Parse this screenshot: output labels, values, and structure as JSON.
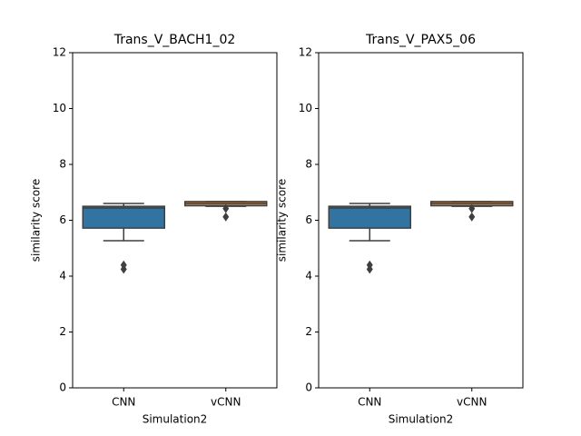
{
  "chart_data": [
    {
      "type": "box",
      "title": "Trans_V_BACH1_02",
      "xlabel": "Simulation2",
      "ylabel": "similarity score",
      "categories": [
        "CNN",
        "vCNN"
      ],
      "colors": [
        "#3274a1",
        "#e1812c"
      ],
      "boxes": [
        {
          "whislo": 5.27,
          "q1": 5.72,
          "med": 6.44,
          "q3": 6.5,
          "whishi": 6.6,
          "fliers": [
            4.25,
            4.4
          ]
        },
        {
          "whislo": 6.5,
          "q1": 6.52,
          "med": 6.6,
          "q3": 6.67,
          "whishi": 6.67,
          "fliers": [
            6.12,
            6.42
          ]
        }
      ],
      "ylim": [
        0,
        12
      ],
      "yticks": [
        0,
        2,
        4,
        6,
        8,
        10,
        12
      ]
    },
    {
      "type": "box",
      "title": "Trans_V_PAX5_06",
      "xlabel": "Simulation2",
      "ylabel": "similarity score",
      "categories": [
        "CNN",
        "vCNN"
      ],
      "colors": [
        "#3274a1",
        "#e1812c"
      ],
      "boxes": [
        {
          "whislo": 5.27,
          "q1": 5.72,
          "med": 6.44,
          "q3": 6.5,
          "whishi": 6.6,
          "fliers": [
            4.25,
            4.4
          ]
        },
        {
          "whislo": 6.5,
          "q1": 6.52,
          "med": 6.6,
          "q3": 6.67,
          "whishi": 6.67,
          "fliers": [
            6.12,
            6.42
          ]
        }
      ],
      "ylim": [
        0,
        12
      ],
      "yticks": [
        0,
        2,
        4,
        6,
        8,
        10,
        12
      ]
    }
  ]
}
